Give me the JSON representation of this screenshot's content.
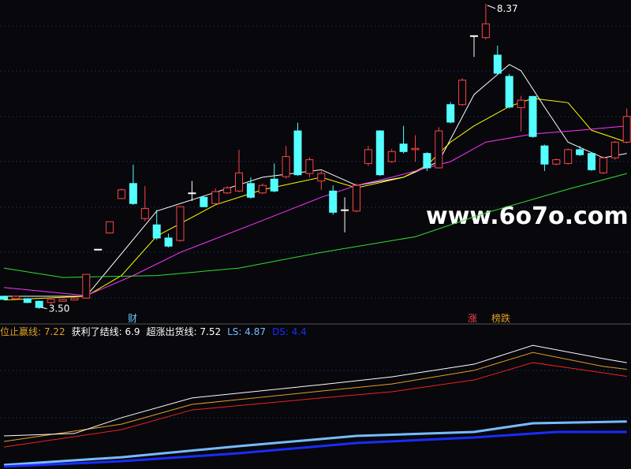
{
  "chart_data": [
    {
      "type": "candlestick",
      "up_color": "#ff4444",
      "down_color": "#54ffff",
      "flat_color": "#ffffff",
      "ylim": [
        3.27,
        8.43
      ],
      "max_label": "8.37",
      "min_label": "3.50",
      "candles": [
        [
          3.7,
          3.71,
          3.64,
          3.65
        ],
        [
          3.66,
          3.71,
          3.65,
          3.7
        ],
        [
          3.66,
          3.67,
          3.59,
          3.6
        ],
        [
          3.62,
          3.63,
          3.5,
          3.52
        ],
        [
          3.6,
          3.66,
          3.58,
          3.65
        ],
        [
          3.62,
          3.66,
          3.61,
          3.65
        ],
        [
          3.64,
          3.68,
          3.63,
          3.67
        ],
        [
          3.67,
          4.05,
          3.66,
          4.05
        ],
        [
          4.45,
          4.45,
          4.45,
          4.45
        ],
        [
          4.71,
          4.89,
          4.7,
          4.89
        ],
        [
          5.26,
          5.42,
          5.25,
          5.4
        ],
        [
          5.5,
          5.8,
          5.16,
          5.18
        ],
        [
          4.94,
          5.46,
          4.9,
          5.1
        ],
        [
          4.84,
          5.08,
          4.6,
          4.63
        ],
        [
          4.63,
          4.7,
          4.48,
          4.5
        ],
        [
          4.59,
          5.14,
          4.57,
          5.13
        ],
        [
          5.35,
          5.54,
          5.22,
          5.35
        ],
        [
          5.28,
          5.3,
          5.12,
          5.13
        ],
        [
          5.18,
          5.42,
          5.17,
          5.37
        ],
        [
          5.35,
          5.46,
          5.33,
          5.43
        ],
        [
          5.38,
          6.04,
          5.36,
          5.67
        ],
        [
          5.5,
          5.6,
          5.26,
          5.28
        ],
        [
          5.35,
          5.5,
          5.33,
          5.47
        ],
        [
          5.57,
          5.82,
          5.36,
          5.38
        ],
        [
          5.61,
          6.1,
          5.58,
          5.93
        ],
        [
          6.34,
          6.47,
          5.62,
          5.64
        ],
        [
          5.66,
          5.92,
          5.6,
          5.88
        ],
        [
          5.54,
          5.7,
          5.4,
          5.66
        ],
        [
          5.38,
          5.47,
          5.0,
          5.04
        ],
        [
          5.08,
          5.28,
          4.72,
          5.08
        ],
        [
          5.06,
          5.5,
          5.04,
          5.47
        ],
        [
          5.82,
          6.1,
          5.78,
          6.04
        ],
        [
          6.34,
          6.35,
          5.62,
          5.64
        ],
        [
          5.85,
          6.05,
          5.83,
          6.01
        ],
        [
          6.13,
          6.42,
          5.98,
          6.01
        ],
        [
          6.04,
          6.27,
          5.85,
          6.06
        ],
        [
          5.98,
          6.0,
          5.7,
          5.75
        ],
        [
          5.75,
          6.4,
          5.74,
          6.34
        ],
        [
          6.76,
          6.8,
          6.46,
          6.48
        ],
        [
          6.76,
          7.18,
          6.74,
          7.15
        ],
        [
          7.86,
          7.86,
          7.52,
          7.86
        ],
        [
          7.83,
          8.37,
          7.8,
          8.05
        ],
        [
          7.55,
          7.7,
          7.24,
          7.26
        ],
        [
          7.21,
          7.25,
          6.7,
          6.72
        ],
        [
          6.71,
          6.9,
          6.33,
          6.83
        ],
        [
          6.89,
          6.9,
          6.23,
          6.25
        ],
        [
          6.1,
          6.12,
          5.7,
          5.81
        ],
        [
          5.81,
          5.9,
          5.79,
          5.88
        ],
        [
          5.82,
          6.06,
          5.8,
          6.04
        ],
        [
          6.04,
          6.1,
          5.94,
          5.96
        ],
        [
          5.98,
          6.0,
          5.7,
          5.72
        ],
        [
          5.67,
          5.93,
          5.65,
          5.91
        ],
        [
          5.91,
          6.18,
          5.88,
          6.16
        ],
        [
          6.16,
          6.7,
          6.14,
          6.57
        ]
      ],
      "series": [
        {
          "color": "#ffffff",
          "x": [
            0,
            7,
            13,
            17,
            22,
            27,
            30,
            34,
            37,
            40,
            43,
            44,
            46,
            48,
            51,
            53
          ],
          "values": [
            3.7,
            3.7,
            5.06,
            5.3,
            5.6,
            5.72,
            5.47,
            5.6,
            5.85,
            6.92,
            7.4,
            7.3,
            6.72,
            6.16,
            5.91,
            5.98
          ]
        },
        {
          "color": "#ffff00",
          "x": [
            0,
            7,
            10,
            13,
            18,
            22,
            27,
            30,
            34,
            36,
            38,
            40,
            43,
            45,
            48,
            50,
            53
          ],
          "values": [
            3.64,
            3.7,
            4.03,
            4.66,
            5.16,
            5.4,
            5.6,
            5.43,
            5.6,
            5.79,
            6.16,
            6.42,
            6.73,
            6.86,
            6.79,
            6.35,
            6.16
          ]
        },
        {
          "color": "#ff33ff",
          "x": [
            0,
            7,
            11,
            15,
            22,
            27,
            30,
            33,
            38,
            41,
            45,
            49,
            53
          ],
          "values": [
            3.84,
            3.71,
            4.03,
            4.4,
            4.91,
            5.28,
            5.47,
            5.6,
            5.85,
            6.16,
            6.29,
            6.35,
            6.42
          ]
        },
        {
          "color": "#33dd33",
          "x": [
            0,
            5,
            13,
            20,
            27,
            35,
            41,
            48,
            53
          ],
          "values": [
            4.15,
            4.0,
            4.03,
            4.15,
            4.4,
            4.65,
            5.03,
            5.41,
            5.66
          ]
        }
      ],
      "markers": [
        "财",
        "涨",
        "榜跌"
      ],
      "watermark": "www.6o7o.com"
    },
    {
      "type": "line",
      "ylim": [
        2.73,
        9.12
      ],
      "series": [
        {
          "name": "位止赢线: ",
          "label_value": 7.22,
          "color": "#e0a020",
          "x": [
            0,
            10,
            16,
            27,
            33,
            40,
            45,
            51,
            53
          ],
          "values": [
            3.97,
            4.75,
            5.64,
            6.24,
            6.56,
            7.17,
            7.98,
            7.35,
            7.22
          ]
        },
        {
          "name": "获利了结线: ",
          "label_value": 6.9,
          "color": "#ee2222",
          "x": [
            0,
            10,
            16,
            27,
            33,
            40,
            45,
            51,
            53
          ],
          "values": [
            3.72,
            4.5,
            5.39,
            5.93,
            6.21,
            6.74,
            7.52,
            7.06,
            6.9
          ]
        },
        {
          "name": "超涨出货线: ",
          "label_value": 7.52,
          "color": "#ffffff",
          "x": [
            0,
            6,
            10,
            16,
            27,
            33,
            40,
            45,
            51,
            53
          ],
          "values": [
            4.22,
            4.33,
            5.04,
            5.93,
            6.53,
            6.88,
            7.45,
            8.3,
            7.7,
            7.52
          ]
        },
        {
          "name": "LS: ",
          "label_value": 4.87,
          "color": "#77bbff",
          "x": [
            0,
            10,
            20,
            30,
            40,
            45,
            53
          ],
          "values": [
            2.91,
            3.26,
            3.76,
            4.22,
            4.4,
            4.79,
            4.87
          ]
        },
        {
          "name": "DS: ",
          "label_value": 4.4,
          "color": "#1a2cff",
          "x": [
            0,
            10,
            20,
            30,
            40,
            47,
            53
          ],
          "values": [
            2.84,
            3.08,
            3.44,
            3.9,
            4.15,
            4.4,
            4.4
          ]
        }
      ]
    }
  ]
}
